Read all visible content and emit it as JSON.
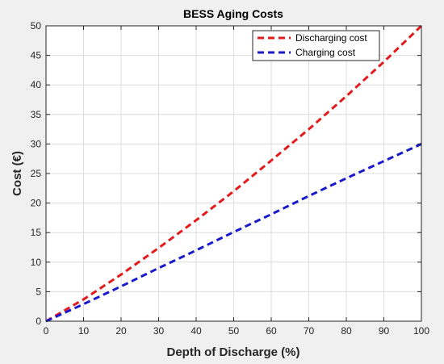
{
  "chart_data": {
    "type": "line",
    "title": "BESS Aging Costs",
    "xlabel": "Depth of Discharge (%)",
    "ylabel": "Cost (€)",
    "xlim": [
      0,
      100
    ],
    "ylim": [
      0,
      50
    ],
    "xticks": [
      0,
      10,
      20,
      30,
      40,
      50,
      60,
      70,
      80,
      90,
      100
    ],
    "yticks": [
      0,
      5,
      10,
      15,
      20,
      25,
      30,
      35,
      40,
      45,
      50
    ],
    "grid": true,
    "legend": "top-right",
    "x": [
      0,
      10,
      20,
      30,
      40,
      50,
      60,
      70,
      80,
      90,
      100
    ],
    "series": [
      {
        "name": "Discharging cost",
        "color": "#e31a1c",
        "style": "dashed",
        "values": [
          0,
          3.7,
          7.9,
          12.4,
          17.1,
          22.0,
          27.2,
          32.5,
          38.1,
          43.9,
          50.0
        ]
      },
      {
        "name": "Charging cost",
        "color": "#1a1acd",
        "style": "dashed",
        "values": [
          0,
          2.9,
          5.9,
          9.0,
          12.0,
          15.1,
          18.1,
          21.2,
          24.2,
          27.1,
          30.0
        ]
      }
    ]
  }
}
